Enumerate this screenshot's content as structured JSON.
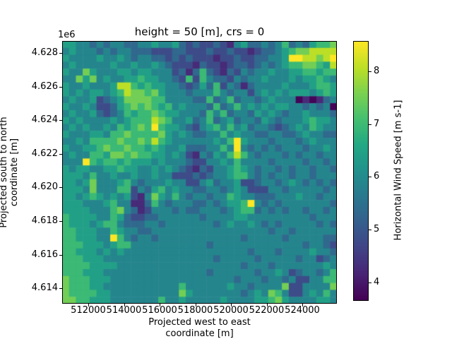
{
  "figure": {
    "background": "#ffffff"
  },
  "axes": {
    "title": "height = 50 [m], crs = 0",
    "y_offset_text": "1e6",
    "xlabel_line1": "Projected west to east",
    "xlabel_line2": "coordinate [m]",
    "ylabel_line1": "Projected south to north",
    "ylabel_line2": "coordinate [m]",
    "x_ticks": [
      "512000",
      "514000",
      "516000",
      "518000",
      "520000",
      "522000",
      "524000"
    ],
    "y_ticks": [
      "4.628",
      "4.626",
      "4.624",
      "4.622",
      "4.620",
      "4.618",
      "4.616",
      "4.614"
    ]
  },
  "colorbar": {
    "label": "Horizontal Wind Speed [m s-1]",
    "ticks": [
      "8",
      "7",
      "6",
      "5",
      "4"
    ],
    "tick_values": [
      8,
      7,
      6,
      5,
      4
    ],
    "vmin": 3.66,
    "vmax": 8.56,
    "colormap": "viridis"
  },
  "colors": {
    "viridis_stops": [
      "#440154",
      "#482475",
      "#414487",
      "#355f8d",
      "#2a788e",
      "#21918c",
      "#22a884",
      "#44bf70",
      "#7ad151",
      "#bddf26",
      "#fde725"
    ],
    "text": "#000000",
    "background": "#ffffff"
  },
  "chart_data": {
    "type": "heatmap",
    "title": "height = 50 [m], crs = 0",
    "xlabel": "Projected west to east coordinate [m]",
    "ylabel": "Projected south to north coordinate [m]",
    "colorbar_label": "Horizontal Wind Speed [m s-1]",
    "colormap": "viridis",
    "x_tick_values": [
      512000,
      514000,
      516000,
      518000,
      520000,
      522000,
      524000
    ],
    "y_tick_values": [
      4628000,
      4626000,
      4624000,
      4622000,
      4620000,
      4618000,
      4616000,
      4614000
    ],
    "x_range_m": [
      510530,
      525970
    ],
    "y_range_m": [
      4613100,
      4628710
    ],
    "value_range_ms": [
      3.7,
      8.6
    ],
    "colorbar_range_ms": [
      3.66,
      8.56
    ],
    "grid_shape_rows_cols": [
      38,
      40
    ],
    "encoding_note": "rows: top-to-bottom; each digit L (0-9) is wind speed = 3.7 + L*(8.6-3.7)/9 m/s",
    "rows": [
      "5544343443344544532322321453343463435667",
      "4544434344333222332223223221233456778888",
      "5444454454344332323222122322334459988789",
      "4544444544544543222132212332343456677658",
      "5447544455455444231363213243445445566566",
      "4475745445565544326264332434454445455654",
      "5445444588656554432353624313444454445665",
      "5454554568776754443444643442454545554565",
      "4544523457777664444336346344345444010134",
      "5445422356767656454443634645454554434340",
      "4544532346566765544436463443545434454443",
      "5454444545666876445346345344354344456554",
      "4545445465676965543245646453443234546544",
      "5444554667666675454334464544334433454433",
      "4454666676676865444444546954443444345444",
      "5445567667665654453334464943434344434454",
      "4544665776766554542143546864344434344344",
      "4449656656555454443224454644443444434434",
      "5455445565544545432132445654344343443443",
      "5554644544544544222323445664343443443444",
      "5545744456434445442245344522344345434343",
      "5554744466243564544334434542224434444434",
      "5545654545214754643443446544333444544344",
      "5554445644113643444334345569434344444443",
      "5555444674312444343344434566343434434434",
      "6555544653223344444434444554444444443444",
      "6555456643334434444444345445434344444343",
      "6655544654433444444444444444443443444444",
      "6655544964344344444444444434444434444433",
      "6665554566444444444443444444444444434432",
      "6655545454444444444444444443444344445443",
      "6665554444444444444444344444344444344234",
      "6666555544444444444444444434443444444454",
      "6665554444444444444443444444344542344346",
      "7666555444444444444444444344434434224466",
      "7666554444444444464444445443444472244447",
      "7666655444444444475444444434547642245464",
      "7766555444444464454444454444556754444554"
    ]
  }
}
